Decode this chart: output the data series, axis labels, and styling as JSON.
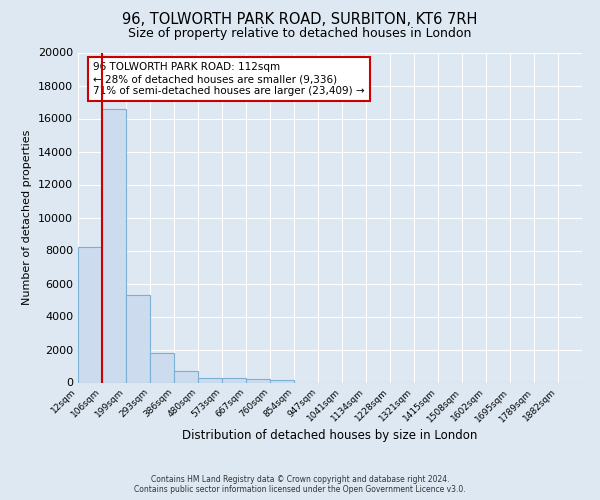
{
  "title": "96, TOLWORTH PARK ROAD, SURBITON, KT6 7RH",
  "subtitle": "Size of property relative to detached houses in London",
  "xlabel": "Distribution of detached houses by size in London",
  "ylabel": "Number of detached properties",
  "categories": [
    "12sqm",
    "106sqm",
    "199sqm",
    "293sqm",
    "386sqm",
    "480sqm",
    "573sqm",
    "667sqm",
    "760sqm",
    "854sqm",
    "947sqm",
    "1041sqm",
    "1134sqm",
    "1228sqm",
    "1321sqm",
    "1415sqm",
    "1508sqm",
    "1602sqm",
    "1695sqm",
    "1789sqm",
    "1882sqm"
  ],
  "bar_heights": [
    8200,
    16600,
    5300,
    1800,
    700,
    300,
    250,
    200,
    150,
    0,
    0,
    0,
    0,
    0,
    0,
    0,
    0,
    0,
    0,
    0,
    0
  ],
  "bar_color": "#ccdcee",
  "bar_edge_color": "#7bafd4",
  "red_line_x": 1.0,
  "red_line_color": "#cc0000",
  "ylim": [
    0,
    20000
  ],
  "yticks": [
    0,
    2000,
    4000,
    6000,
    8000,
    10000,
    12000,
    14000,
    16000,
    18000,
    20000
  ],
  "annotation_line1": "96 TOLWORTH PARK ROAD: 112sqm",
  "annotation_line2": "← 28% of detached houses are smaller (9,336)",
  "annotation_line3": "71% of semi-detached houses are larger (23,409) →",
  "ann_box_fc": "#ffffff",
  "ann_box_ec": "#cc0000",
  "bg_color": "#dde8f2",
  "grid_color": "#ffffff",
  "footer1": "Contains HM Land Registry data © Crown copyright and database right 2024.",
  "footer2": "Contains public sector information licensed under the Open Government Licence v3.0."
}
